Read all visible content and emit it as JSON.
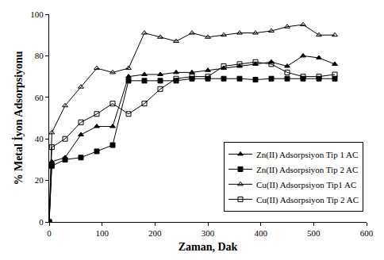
{
  "chart_data": {
    "type": "line",
    "x_label": "Zaman, Dak",
    "y_label": "% Metal İyon Adsorpsiyonu",
    "x": [
      0,
      5,
      30,
      60,
      90,
      120,
      150,
      180,
      210,
      240,
      270,
      300,
      330,
      360,
      390,
      420,
      450,
      480,
      510,
      540
    ],
    "series": [
      {
        "name": "Zn(II) Adsorpsiyon Tip 1 AC",
        "color": "#000000",
        "marker": "triangle-up",
        "values": [
          0,
          29,
          31,
          42,
          46,
          46,
          70,
          71,
          71,
          72,
          72,
          73,
          74,
          75,
          76,
          77,
          75,
          80,
          79,
          76
        ]
      },
      {
        "name": "Zn(II) Adsorpsiyon Tip 2 AC",
        "color": "#000000",
        "marker": "square",
        "values": [
          0,
          27,
          30,
          31,
          34,
          37,
          68,
          68,
          68,
          68,
          69,
          69,
          69,
          69,
          68.5,
          69,
          69,
          69,
          69,
          69
        ]
      },
      {
        "name": "Cu(II) Adsorpsiyon Tip1 AC",
        "color": "#000000",
        "marker": "triangle-up-open",
        "values": [
          0,
          43,
          56,
          65,
          74,
          72,
          74,
          91,
          89,
          87,
          91,
          89,
          90,
          91,
          91,
          92,
          94,
          95,
          90,
          90
        ]
      },
      {
        "name": "Cu(II) Adsorpsiyon Tip 2 AC",
        "color": "#000000",
        "marker": "square-open",
        "values": [
          0,
          36,
          40,
          48,
          52,
          57,
          52,
          57,
          64,
          69,
          70,
          70,
          75,
          76,
          77,
          76,
          72,
          70,
          70,
          71
        ]
      }
    ],
    "xlim": [
      0,
      600
    ],
    "xticks": [
      0,
      100,
      200,
      300,
      400,
      500,
      600
    ],
    "ylim": [
      0,
      100
    ],
    "yticks": [
      0,
      20,
      40,
      60,
      80,
      100
    ],
    "grid": false,
    "legend": "lower right"
  }
}
